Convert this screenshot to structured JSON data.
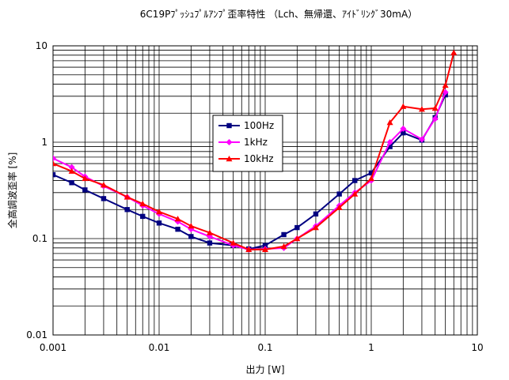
{
  "chart_data": {
    "type": "line",
    "title": "6C19Pﾌﾟｯｼｭﾌﾟﾙｱﾝﾌﾟ歪率特性 （Lch、無帰還、ｱｲﾄﾞﾘﾝｸﾞ30mA）",
    "xlabel": "出力 [W]",
    "ylabel": "全高調波歪率 [%]",
    "x_scale": "log",
    "y_scale": "log",
    "xlim": [
      0.001,
      10
    ],
    "ylim": [
      0.01,
      10
    ],
    "x_ticks": [
      "0.001",
      "0.01",
      "0.1",
      "1",
      "10"
    ],
    "y_ticks": [
      "0.01",
      "0.1",
      "1",
      "10"
    ],
    "grid": true,
    "legend_position": "center-left inside plot",
    "series": [
      {
        "name": "100Hz",
        "color": "#000080",
        "marker": "square",
        "x": [
          0.001,
          0.0015,
          0.002,
          0.003,
          0.005,
          0.007,
          0.01,
          0.015,
          0.02,
          0.03,
          0.05,
          0.07,
          0.1,
          0.15,
          0.2,
          0.3,
          0.5,
          0.7,
          1.0,
          1.5,
          2.0,
          3.0,
          4.0,
          5.0
        ],
        "y": [
          0.46,
          0.38,
          0.32,
          0.26,
          0.2,
          0.17,
          0.145,
          0.125,
          0.105,
          0.09,
          0.085,
          0.078,
          0.085,
          0.11,
          0.13,
          0.18,
          0.29,
          0.4,
          0.48,
          0.9,
          1.25,
          1.05,
          1.8,
          3.1
        ]
      },
      {
        "name": "1kHz",
        "color": "#ff00ff",
        "marker": "diamond",
        "x": [
          0.001,
          0.0015,
          0.002,
          0.003,
          0.005,
          0.007,
          0.01,
          0.015,
          0.02,
          0.03,
          0.05,
          0.07,
          0.1,
          0.15,
          0.2,
          0.3,
          0.5,
          0.7,
          1.0,
          1.5,
          2.0,
          3.0,
          4.0,
          5.0
        ],
        "y": [
          0.68,
          0.55,
          0.44,
          0.35,
          0.27,
          0.22,
          0.18,
          0.15,
          0.125,
          0.105,
          0.085,
          0.077,
          0.078,
          0.08,
          0.1,
          0.135,
          0.22,
          0.3,
          0.4,
          1.0,
          1.38,
          1.07,
          1.75,
          3.3
        ]
      },
      {
        "name": "10kHz",
        "color": "#ff0000",
        "marker": "triangle",
        "x": [
          0.001,
          0.0015,
          0.002,
          0.003,
          0.005,
          0.007,
          0.01,
          0.015,
          0.02,
          0.03,
          0.05,
          0.07,
          0.1,
          0.15,
          0.2,
          0.3,
          0.5,
          0.7,
          1.0,
          1.5,
          2.0,
          3.0,
          4.0,
          5.0,
          6.0
        ],
        "y": [
          0.6,
          0.5,
          0.42,
          0.36,
          0.27,
          0.23,
          0.19,
          0.16,
          0.135,
          0.115,
          0.09,
          0.077,
          0.077,
          0.083,
          0.1,
          0.13,
          0.21,
          0.29,
          0.42,
          1.6,
          2.35,
          2.2,
          2.25,
          3.9,
          8.5
        ]
      }
    ]
  }
}
